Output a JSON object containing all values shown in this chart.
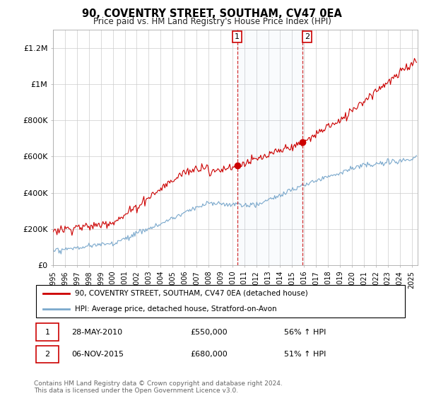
{
  "title": "90, COVENTRY STREET, SOUTHAM, CV47 0EA",
  "subtitle": "Price paid vs. HM Land Registry's House Price Index (HPI)",
  "ylabel_ticks": [
    "£0",
    "£200K",
    "£400K",
    "£600K",
    "£800K",
    "£1M",
    "£1.2M"
  ],
  "ytick_values": [
    0,
    200000,
    400000,
    600000,
    800000,
    1000000,
    1200000
  ],
  "ylim": [
    0,
    1300000
  ],
  "xlim_start": 1995.0,
  "xlim_end": 2025.5,
  "red_color": "#cc0000",
  "blue_color": "#7aa8cc",
  "marker1_x": 2010.4,
  "marker2_x": 2015.85,
  "marker1_y": 550000,
  "marker2_y": 680000,
  "legend_line1": "90, COVENTRY STREET, SOUTHAM, CV47 0EA (detached house)",
  "legend_line2": "HPI: Average price, detached house, Stratford-on-Avon",
  "annotation1_date": "28-MAY-2010",
  "annotation1_price": "£550,000",
  "annotation1_hpi": "56% ↑ HPI",
  "annotation2_date": "06-NOV-2015",
  "annotation2_price": "£680,000",
  "annotation2_hpi": "51% ↑ HPI",
  "footer": "Contains HM Land Registry data © Crown copyright and database right 2024.\nThis data is licensed under the Open Government Licence v3.0.",
  "background_color": "#ffffff",
  "grid_color": "#cccccc"
}
